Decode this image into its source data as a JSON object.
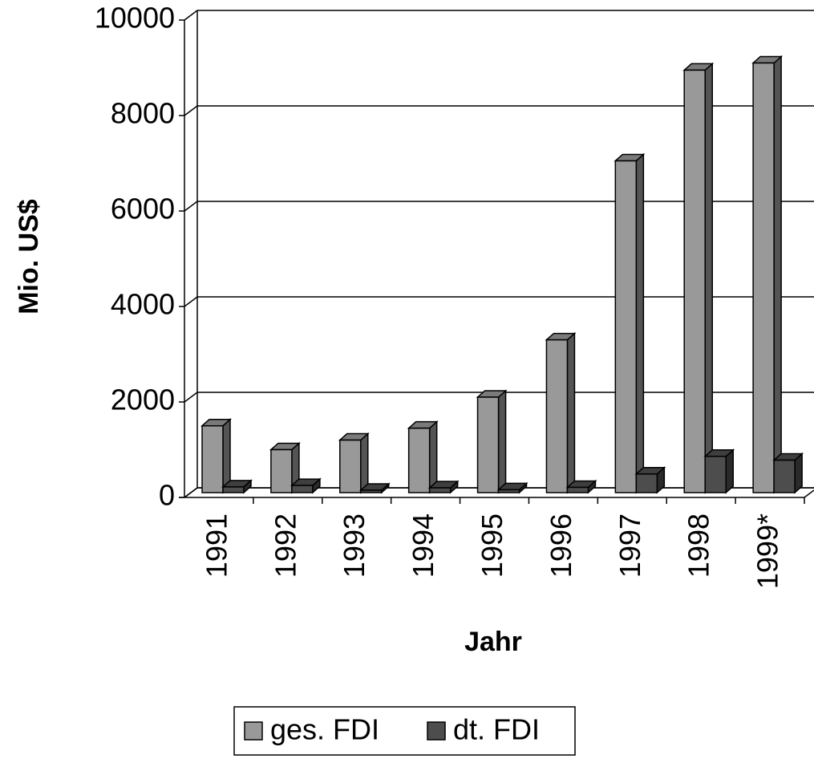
{
  "chart_data": {
    "type": "bar3d",
    "x_label": "Jahr",
    "y_label": "Mio. US$",
    "categories": [
      "1991",
      "1992",
      "1993",
      "1994",
      "1995",
      "1996",
      "1997",
      "1998",
      "1999*"
    ],
    "series": [
      {
        "name": "ges. FDI",
        "color": "#999999",
        "values": [
          1400,
          900,
          1100,
          1350,
          2000,
          3200,
          6950,
          8850,
          9000
        ]
      },
      {
        "name": "dt. FDI",
        "color": "#4d4d4d",
        "values": [
          120,
          150,
          50,
          100,
          60,
          110,
          390,
          760,
          680
        ]
      }
    ],
    "ylim": [
      0,
      10000
    ],
    "yticks": [
      0,
      2000,
      4000,
      6000,
      8000,
      10000
    ],
    "grid": true
  }
}
